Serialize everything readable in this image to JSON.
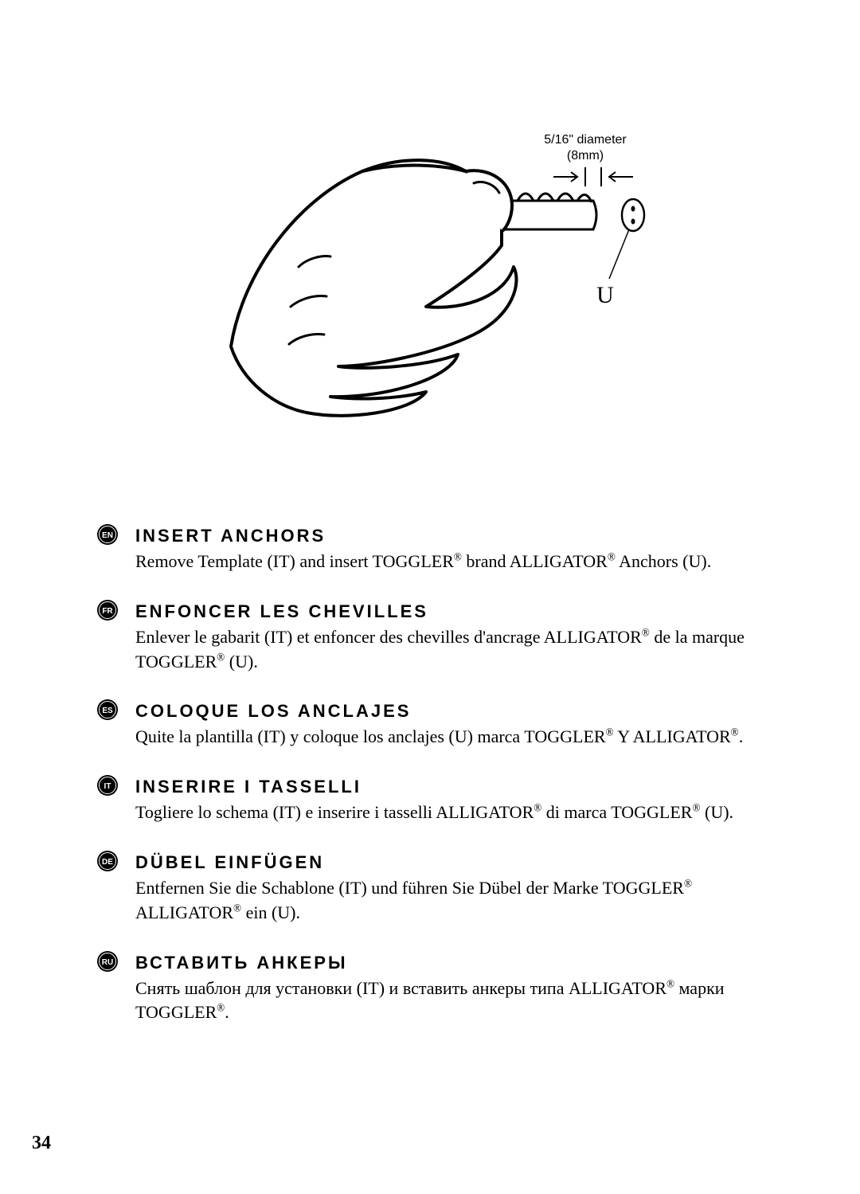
{
  "diagram": {
    "label_line1": "5/16\" diameter",
    "label_line2": "(8mm)",
    "part_label": "U",
    "label_fontsize": 16,
    "part_label_fontsize": 30,
    "stroke_color": "#000000",
    "background_color": "#ffffff"
  },
  "sections": [
    {
      "lang_code": "EN",
      "title": "INSERT ANCHORS",
      "text_html": "Remove Template (IT) and insert TOGGLER<sup>®</sup> brand ALLIGATOR<sup>®</sup> Anchors (U)."
    },
    {
      "lang_code": "FR",
      "title": "ENFONCER LES CHEVILLES",
      "text_html": "Enlever le gabarit (IT) et enfoncer des chevilles d'ancrage ALLIGATOR<sup>®</sup> de la marque TOGGLER<sup>®</sup> (U)."
    },
    {
      "lang_code": "ES",
      "title": "COLOQUE LOS ANCLAJES",
      "text_html": "Quite la plantilla (IT) y coloque los anclajes (U) marca TOGGLER<sup>®</sup> Y ALLIGATOR<sup>®</sup>."
    },
    {
      "lang_code": "IT",
      "title": "INSERIRE I TASSELLI",
      "text_html": "Togliere lo schema (IT) e inserire i tasselli ALLIGATOR<sup>®</sup> di marca TOGGLER<sup>®</sup> (U)."
    },
    {
      "lang_code": "DE",
      "title": "DÜBEL EINFÜGEN",
      "text_html": "Entfernen Sie die Schablone (IT) und führen Sie Dübel der Marke TOGGLER<sup>®</sup> ALLIGATOR<sup>®</sup> ein (U)."
    },
    {
      "lang_code": "RU",
      "title": "ВСТАВИТЬ АНКЕРЫ",
      "text_html": "Снять шаблон для установки (IT) и вставить анкеры типа ALLIGATOR<sup>®</sup> марки TOGGLER<sup>®</sup>."
    }
  ],
  "style": {
    "title_fontsize": 22,
    "title_letter_spacing": 3,
    "title_font_weight": 700,
    "body_fontsize": 22,
    "title_color": "#000000",
    "body_color": "#000000",
    "badge_fill": "#000000",
    "badge_text_color": "#ffffff",
    "background_color": "#ffffff"
  },
  "page_number": "34"
}
